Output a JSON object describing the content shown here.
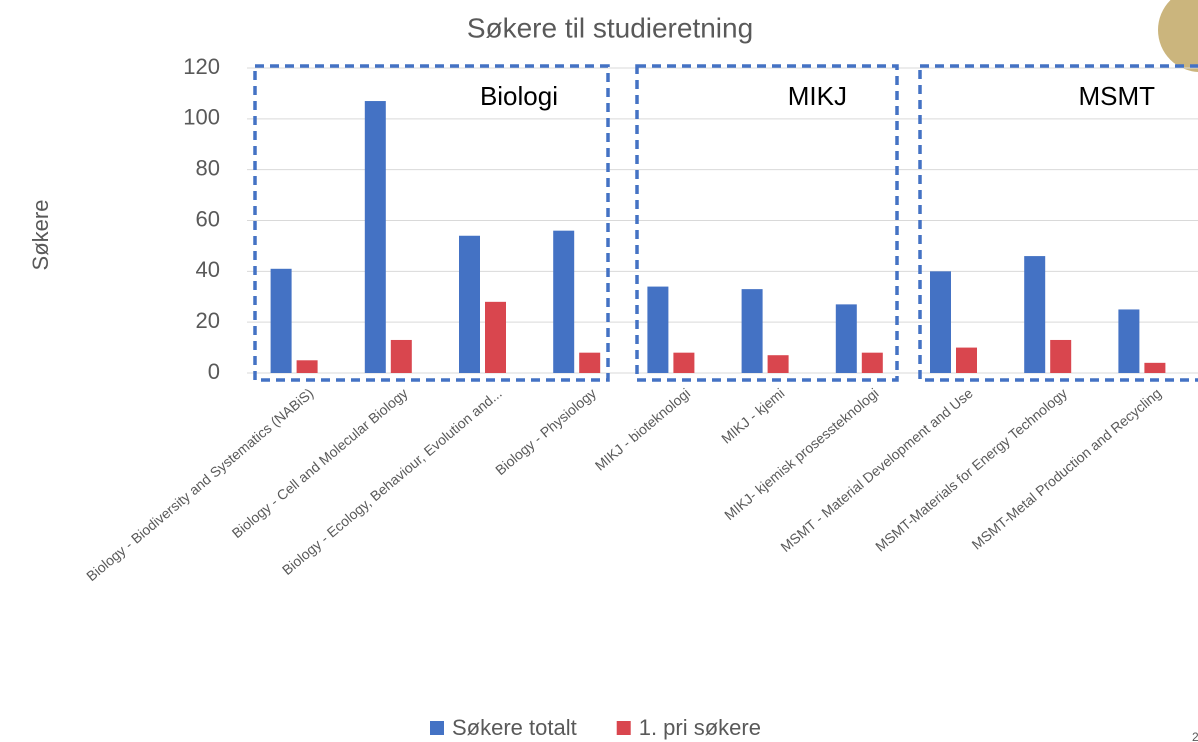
{
  "chart_data": {
    "type": "bar",
    "title": "Søkere til studieretning",
    "y_label": "Søkere",
    "categories": [
      "Biology - Biodiversity and Systematics (NABiS)",
      "Biology - Cell and Molecular Biology",
      "Biology - Ecology, Behaviour, Evolution and...",
      "Biology - Physiology",
      "MIKJ - bioteknologi",
      "MIKJ - kjemi",
      "MIKJ- kjemisk prosessteknologi",
      "MSMT - Material Development and Use",
      "MSMT-Materials for Energy Technology",
      "MSMT-Metal Production and Recycling"
    ],
    "series": [
      {
        "name": "Søkere totalt",
        "color": "#4472c4",
        "values": [
          41,
          107,
          54,
          56,
          34,
          33,
          27,
          40,
          46,
          25
        ]
      },
      {
        "name": "1. pri søkere",
        "color": "#d9464e",
        "values": [
          5,
          13,
          28,
          8,
          8,
          7,
          8,
          10,
          13,
          4
        ]
      }
    ],
    "annotations": [
      "Biologi",
      "MIKJ",
      "MSMT"
    ],
    "ylim": [
      0,
      120
    ],
    "yticks": [
      0,
      20,
      40,
      60,
      80,
      100,
      120
    ],
    "grid": true,
    "legend": "bottom",
    "page_number": "2"
  }
}
